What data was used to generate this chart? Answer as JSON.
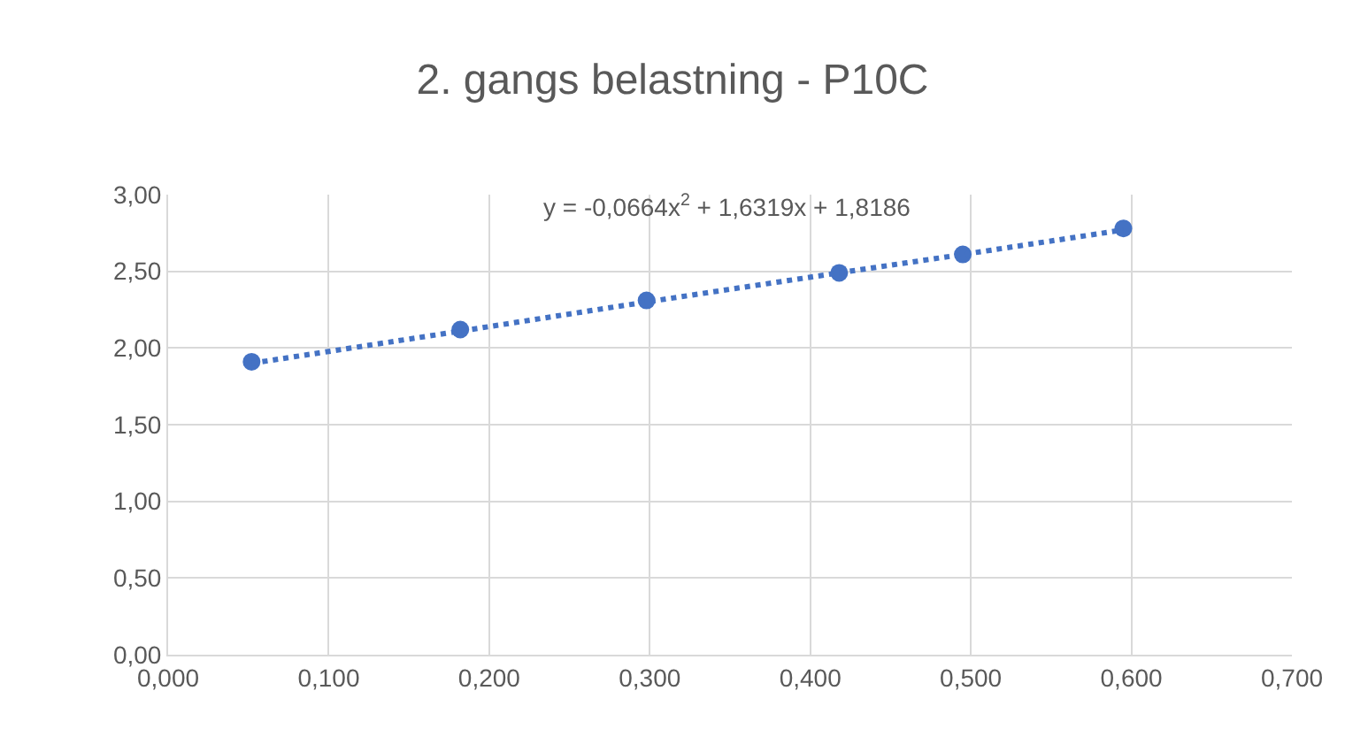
{
  "chart_data": {
    "type": "scatter",
    "title": "2. gangs belastning - P10C",
    "annotations": [
      "y = -0,0664x$^{2}$ + 1,6319x + 1,8186"
    ],
    "series": [
      {
        "color": "#4472c4",
        "marker": "circle",
        "x": [
          0.052,
          0.182,
          0.298,
          0.418,
          0.495,
          0.595
        ],
        "values": [
          1.91,
          2.12,
          2.31,
          2.49,
          2.61,
          2.78
        ]
      },
      {
        "type": "line",
        "color": "#4472c4",
        "marker": "none",
        "line_style": "dotted",
        "x": [
          0.052,
          0.182,
          0.298,
          0.418,
          0.495,
          0.595
        ],
        "values": [
          1.9,
          2.11,
          2.3,
          2.49,
          2.61,
          2.77
        ]
      }
    ],
    "xlim": [
      0,
      0.7
    ],
    "xticks": [
      {
        "value": 0,
        "label": "0,000"
      },
      {
        "value": 0.1,
        "label": "0,100"
      },
      {
        "value": 0.2,
        "label": "0,200"
      },
      {
        "value": 0.3,
        "label": "0,300"
      },
      {
        "value": 0.4,
        "label": "0,400"
      },
      {
        "value": 0.5,
        "label": "0,500"
      },
      {
        "value": 0.6,
        "label": "0,600"
      },
      {
        "value": 0.7,
        "label": "0,700"
      }
    ],
    "ylim": [
      0,
      3
    ],
    "yticks": [
      {
        "value": 0,
        "label": "0,00"
      },
      {
        "value": 0.5,
        "label": "0,50"
      },
      {
        "value": 1,
        "label": "1,00"
      },
      {
        "value": 1.5,
        "label": "1,50"
      },
      {
        "value": 2,
        "label": "2,00"
      },
      {
        "value": 2.5,
        "label": "2,50"
      },
      {
        "value": 3,
        "label": "3,00"
      }
    ],
    "grid": true
  }
}
